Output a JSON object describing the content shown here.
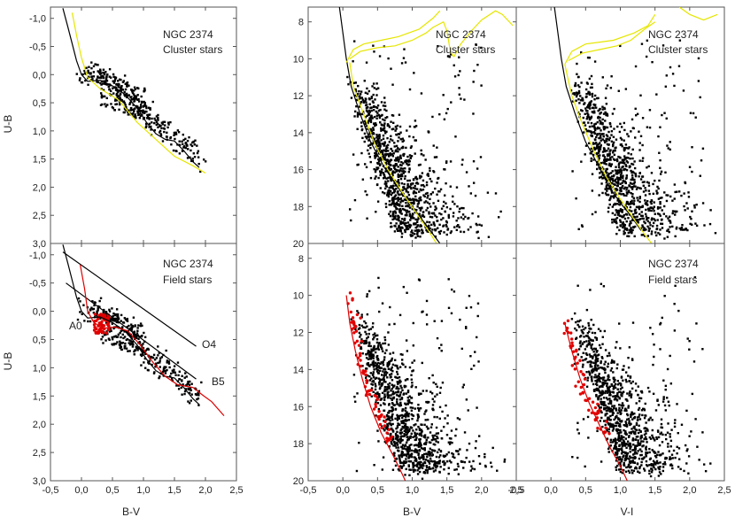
{
  "figure": {
    "x_axis_titles": {
      "left": "B-V",
      "middle": "B-V",
      "right": "V-I"
    },
    "y_axis_titles": {
      "top_left": "U-B",
      "bottom_left": "U-B"
    }
  },
  "chart_data": [
    {
      "id": "cc_cluster",
      "type": "scatter",
      "annotations": [
        "NGC 2374",
        "Cluster stars"
      ],
      "xlabel": "",
      "ylabel": "U-B",
      "xlim": [
        -0.5,
        2.5
      ],
      "ylim": [
        3.0,
        -1.2
      ],
      "x_ticks": [],
      "y_ticks": [
        -1.0,
        -0.5,
        0.0,
        0.5,
        1.0,
        1.5,
        2.0,
        2.5,
        3.0
      ],
      "y_tick_labels": [
        "-1,0",
        "-0,5",
        "0,0",
        "0,5",
        "1,0",
        "1,5",
        "2,0",
        "2,5",
        "3,0"
      ],
      "stars": {
        "kind": "color-color",
        "count": 420,
        "seed": 11
      },
      "lines": [
        {
          "color": "#000000",
          "points": [
            [
              -0.3,
              -1.18
            ],
            [
              -0.22,
              -0.85
            ],
            [
              -0.15,
              -0.55
            ],
            [
              -0.08,
              -0.25
            ],
            [
              0.0,
              0.0
            ],
            [
              0.1,
              0.12
            ],
            [
              0.3,
              0.1
            ],
            [
              0.5,
              0.2
            ],
            [
              0.7,
              0.35
            ],
            [
              0.9,
              0.6
            ],
            [
              1.05,
              0.85
            ],
            [
              1.2,
              1.05
            ],
            [
              1.35,
              1.15
            ],
            [
              1.5,
              1.18
            ],
            [
              1.65,
              1.35
            ],
            [
              1.8,
              1.55
            ],
            [
              1.9,
              1.65
            ]
          ]
        },
        {
          "color": "#e6e600",
          "points": [
            [
              -0.15,
              -1.1
            ],
            [
              -0.08,
              -0.7
            ],
            [
              0.0,
              -0.3
            ],
            [
              0.1,
              0.05
            ],
            [
              0.3,
              0.25
            ],
            [
              0.6,
              0.45
            ],
            [
              0.9,
              0.85
            ],
            [
              1.2,
              1.15
            ],
            [
              1.5,
              1.45
            ],
            [
              1.8,
              1.62
            ],
            [
              2.0,
              1.75
            ]
          ]
        }
      ]
    },
    {
      "id": "cc_field",
      "type": "scatter",
      "annotations": [
        "NGC 2374",
        "Field stars",
        "A0",
        "O4",
        "B5"
      ],
      "xlabel": "B-V",
      "ylabel": "U-B",
      "xlim": [
        -0.5,
        2.5
      ],
      "ylim": [
        3.0,
        -1.2
      ],
      "x_ticks": [
        -0.5,
        0.0,
        0.5,
        1.0,
        1.5,
        2.0,
        2.5
      ],
      "x_tick_labels": [
        "-0,5",
        "0,0",
        "0,5",
        "1,0",
        "1,5",
        "2,0",
        "2,5"
      ],
      "y_ticks": [
        -1.0,
        -0.5,
        0.0,
        0.5,
        1.0,
        1.5,
        2.0,
        2.5,
        3.0
      ],
      "y_tick_labels": [
        "-1,0",
        "-0,5",
        "0,0",
        "0,5",
        "1,0",
        "1,5",
        "2,0",
        "2,5",
        "3,0"
      ],
      "stars": {
        "kind": "color-color",
        "count": 380,
        "seed": 23
      },
      "red_points": {
        "count": 60,
        "seed": 29,
        "x": [
          0.2,
          0.45
        ],
        "y": [
          0.05,
          0.4
        ]
      },
      "lines": [
        {
          "color": "#000000",
          "points": [
            [
              -0.3,
              -1.18
            ],
            [
              -0.22,
              -0.85
            ],
            [
              -0.15,
              -0.55
            ],
            [
              -0.08,
              -0.25
            ],
            [
              0.0,
              0.0
            ],
            [
              0.1,
              0.12
            ],
            [
              0.3,
              0.1
            ],
            [
              0.5,
              0.2
            ],
            [
              0.7,
              0.35
            ],
            [
              0.9,
              0.6
            ],
            [
              1.05,
              0.85
            ],
            [
              1.2,
              1.05
            ],
            [
              1.35,
              1.15
            ],
            [
              1.5,
              1.18
            ],
            [
              1.65,
              1.35
            ],
            [
              1.8,
              1.55
            ],
            [
              1.9,
              1.65
            ]
          ]
        },
        {
          "color": "#000000",
          "points": [
            [
              -0.3,
              -1.05
            ],
            [
              1.85,
              0.62
            ]
          ]
        },
        {
          "color": "#000000",
          "points": [
            [
              -0.25,
              -0.5
            ],
            [
              1.85,
              1.2
            ]
          ]
        },
        {
          "color": "#dd0000",
          "points": [
            [
              -0.02,
              -0.82
            ],
            [
              0.05,
              -0.4
            ],
            [
              0.1,
              0.0
            ],
            [
              0.2,
              0.2
            ],
            [
              0.35,
              0.3
            ],
            [
              0.55,
              0.28
            ],
            [
              0.75,
              0.35
            ],
            [
              0.95,
              0.6
            ],
            [
              1.15,
              0.9
            ],
            [
              1.35,
              1.15
            ],
            [
              1.55,
              1.3
            ],
            [
              1.8,
              1.35
            ],
            [
              1.95,
              1.48
            ],
            [
              2.1,
              1.6
            ],
            [
              2.3,
              1.85
            ]
          ]
        }
      ]
    },
    {
      "id": "cmd_bv_cluster",
      "type": "scatter",
      "annotations": [
        "NGC 2374",
        "Cluster stars"
      ],
      "xlabel": "",
      "ylabel": "",
      "xlim": [
        -0.5,
        2.5
      ],
      "ylim": [
        20,
        7.2
      ],
      "x_ticks": [],
      "y_ticks": [
        8,
        10,
        12,
        14,
        16,
        18,
        20
      ],
      "y_tick_labels": [
        "8",
        "10",
        "12",
        "14",
        "16",
        "18",
        "20"
      ],
      "stars": {
        "kind": "cmd",
        "count": 1100,
        "seed": 31,
        "base": 0.1
      },
      "lines": [
        {
          "color": "#000000",
          "points": [
            [
              -0.05,
              7.2
            ],
            [
              0.0,
              8.6
            ],
            [
              0.05,
              10.0
            ],
            [
              0.12,
              11.5
            ],
            [
              0.25,
              13.0
            ],
            [
              0.4,
              14.5
            ],
            [
              0.6,
              15.9
            ],
            [
              0.8,
              17.0
            ],
            [
              1.0,
              18.0
            ],
            [
              1.2,
              19.0
            ],
            [
              1.4,
              20.0
            ]
          ]
        },
        {
          "color": "#e6e600",
          "points": [
            [
              0.1,
              10.2
            ],
            [
              0.15,
              11.5
            ],
            [
              0.3,
              13.0
            ],
            [
              0.45,
              14.5
            ],
            [
              0.65,
              16.0
            ],
            [
              0.85,
              17.2
            ],
            [
              1.05,
              18.3
            ],
            [
              1.25,
              19.4
            ],
            [
              1.35,
              20.0
            ]
          ]
        },
        {
          "color": "#e6e600",
          "points": [
            [
              0.05,
              10.2
            ],
            [
              0.15,
              9.5
            ],
            [
              0.3,
              9.2
            ],
            [
              0.55,
              9.0
            ],
            [
              0.8,
              8.8
            ],
            [
              1.1,
              8.4
            ],
            [
              1.3,
              7.8
            ],
            [
              1.4,
              7.4
            ]
          ]
        },
        {
          "color": "#e6e600",
          "points": [
            [
              0.1,
              10.0
            ],
            [
              0.25,
              9.6
            ],
            [
              0.5,
              9.4
            ],
            [
              0.75,
              9.3
            ],
            [
              1.0,
              9.0
            ],
            [
              1.2,
              8.6
            ],
            [
              1.3,
              8.3
            ],
            [
              1.45,
              8.0
            ],
            [
              1.5,
              8.5
            ],
            [
              1.55,
              9.6
            ],
            [
              1.6,
              9.9
            ]
          ]
        },
        {
          "color": "#e6e600",
          "points": [
            [
              1.6,
              9.9
            ],
            [
              1.7,
              9.2
            ],
            [
              1.85,
              8.5
            ],
            [
              2.0,
              7.9
            ],
            [
              2.2,
              7.4
            ],
            [
              2.3,
              7.6
            ],
            [
              2.45,
              8.2
            ]
          ]
        }
      ]
    },
    {
      "id": "cmd_bv_field",
      "type": "scatter",
      "annotations": [],
      "xlabel": "B-V",
      "ylabel": "",
      "xlim": [
        -0.5,
        2.5
      ],
      "ylim": [
        20,
        7.2
      ],
      "x_ticks": [
        -0.5,
        0.0,
        0.5,
        1.0,
        1.5,
        2.0,
        2.5
      ],
      "x_tick_labels": [
        "-0,5",
        "0,0",
        "0,5",
        "1,0",
        "1,5",
        "2,0",
        "2,5"
      ],
      "y_ticks": [
        8,
        10,
        12,
        14,
        16,
        18,
        20
      ],
      "y_tick_labels": [
        "8",
        "10",
        "12",
        "14",
        "16",
        "18",
        "20"
      ],
      "stars": {
        "kind": "cmd",
        "count": 1100,
        "seed": 43,
        "base": 0.15
      },
      "red_points": {
        "count": 70,
        "seed": 47,
        "along": [
          [
            0.1,
            10.0
          ],
          [
            0.35,
            15.0
          ],
          [
            0.7,
            18.0
          ]
        ]
      },
      "lines": [
        {
          "color": "#dd0000",
          "points": [
            [
              0.05,
              10.0
            ],
            [
              0.1,
              11.5
            ],
            [
              0.18,
              13.0
            ],
            [
              0.28,
              14.5
            ],
            [
              0.4,
              16.0
            ],
            [
              0.55,
              17.4
            ],
            [
              0.72,
              18.6
            ],
            [
              0.85,
              19.6
            ],
            [
              0.9,
              20.0
            ]
          ]
        }
      ]
    },
    {
      "id": "cmd_vi_cluster",
      "type": "scatter",
      "annotations": [
        "NGC 2374",
        "Cluster stars"
      ],
      "xlabel": "",
      "ylabel": "",
      "xlim": [
        -0.5,
        2.5
      ],
      "ylim": [
        20,
        7.2
      ],
      "x_ticks": [],
      "y_ticks": [],
      "stars": {
        "kind": "cmd",
        "count": 1000,
        "seed": 53,
        "base": 0.3
      },
      "lines": [
        {
          "color": "#000000",
          "points": [
            [
              0.05,
              7.2
            ],
            [
              0.1,
              8.6
            ],
            [
              0.15,
              10.0
            ],
            [
              0.22,
              11.5
            ],
            [
              0.35,
              13.0
            ],
            [
              0.5,
              14.5
            ],
            [
              0.7,
              15.9
            ],
            [
              0.85,
              17.0
            ],
            [
              1.0,
              17.8
            ],
            [
              1.15,
              18.5
            ],
            [
              1.3,
              19.3
            ]
          ]
        },
        {
          "color": "#e6e600",
          "points": [
            [
              0.2,
              10.3
            ],
            [
              0.3,
              12.0
            ],
            [
              0.45,
              13.5
            ],
            [
              0.62,
              15.0
            ],
            [
              0.8,
              16.4
            ],
            [
              1.0,
              17.6
            ],
            [
              1.2,
              18.7
            ],
            [
              1.35,
              19.5
            ],
            [
              1.45,
              20.0
            ]
          ]
        },
        {
          "color": "#e6e600",
          "points": [
            [
              0.2,
              10.3
            ],
            [
              0.3,
              9.6
            ],
            [
              0.5,
              9.2
            ],
            [
              0.7,
              9.1
            ],
            [
              0.9,
              9.0
            ],
            [
              1.2,
              8.6
            ],
            [
              1.4,
              8.2
            ],
            [
              1.5,
              7.6
            ]
          ]
        },
        {
          "color": "#e6e600",
          "points": [
            [
              0.25,
              10.1
            ],
            [
              0.45,
              9.7
            ],
            [
              0.7,
              9.5
            ],
            [
              0.95,
              9.3
            ],
            [
              1.15,
              9.0
            ],
            [
              1.35,
              8.4
            ],
            [
              1.5,
              8.0
            ]
          ]
        },
        {
          "color": "#e6e600",
          "points": [
            [
              1.85,
              7.2
            ],
            [
              2.0,
              7.6
            ],
            [
              2.2,
              7.9
            ],
            [
              2.4,
              7.6
            ]
          ]
        }
      ]
    },
    {
      "id": "cmd_vi_field",
      "type": "scatter",
      "annotations": [
        "NGC 2374",
        "Field stars"
      ],
      "xlabel": "V-I",
      "ylabel": "",
      "xlim": [
        -0.5,
        2.5
      ],
      "ylim": [
        20,
        7.2
      ],
      "x_ticks": [
        -0.5,
        0.0,
        0.5,
        1.0,
        1.5,
        2.0,
        2.5
      ],
      "x_tick_labels": [
        "-0,5",
        "0,0",
        "0,5",
        "1,0",
        "1,5",
        "2,0",
        "2,5"
      ],
      "y_ticks": [],
      "stars": {
        "kind": "cmd",
        "count": 1000,
        "seed": 61,
        "base": 0.3
      },
      "red_points": {
        "count": 60,
        "seed": 67,
        "along": [
          [
            0.22,
            11.5
          ],
          [
            0.5,
            15.5
          ],
          [
            0.8,
            17.5
          ]
        ]
      },
      "lines": [
        {
          "color": "#dd0000",
          "points": [
            [
              0.2,
              11.5
            ],
            [
              0.3,
              13.0
            ],
            [
              0.42,
              14.5
            ],
            [
              0.55,
              15.8
            ],
            [
              0.7,
              17.0
            ],
            [
              0.85,
              18.2
            ],
            [
              1.0,
              19.2
            ],
            [
              1.1,
              20.0
            ]
          ]
        }
      ]
    }
  ]
}
